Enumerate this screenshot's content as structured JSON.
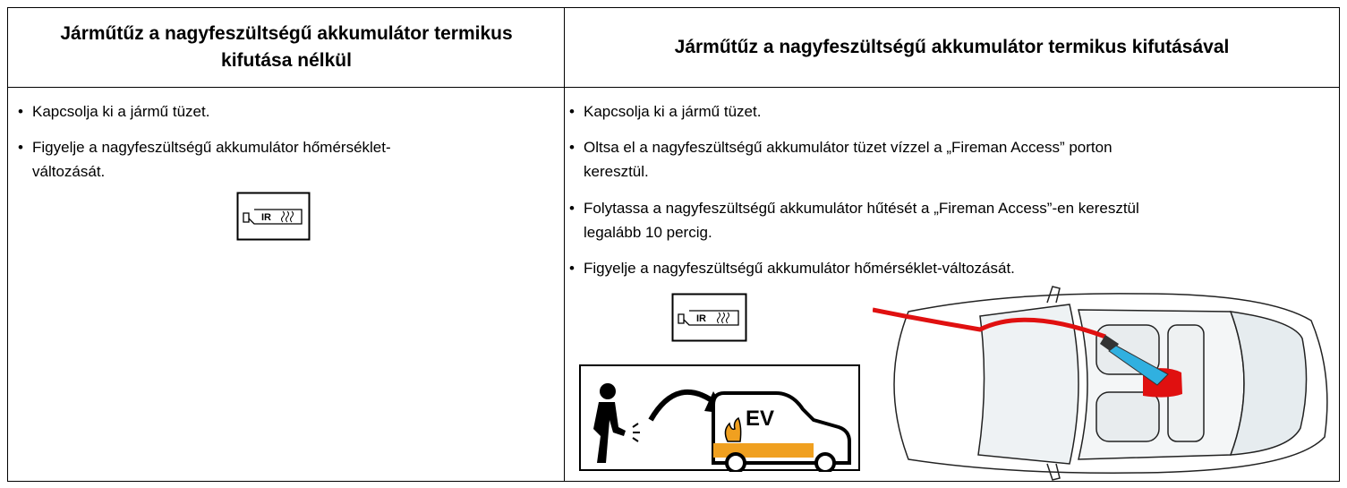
{
  "table": {
    "headers": [
      "Járműtűz a nagyfeszültségű akkumulátor termikus kifutása nélkül",
      "Járműtűz a nagyfeszültségű akkumulátor termikus kifutásával"
    ],
    "left_bullets": [
      "Kapcsolja ki a jármű tüzet.",
      "Figyelje a nagyfeszültségű akkumulátor hőmérséklet-változását."
    ],
    "right_bullets": [
      "Kapcsolja ki a jármű tüzet.",
      "Oltsa el a nagyfeszültségű akkumulátor tüzet vízzel a „Fireman Access” porton keresztül.",
      "Folytassa a nagyfeszültségű akkumulátor hűtését a „Fireman Access”-en keresztül legalább 10 percig.",
      "Figyelje a nagyfeszültségű akkumulátor hőmérséklet-változását."
    ]
  },
  "icons": {
    "ir": "IR",
    "ev": "EV"
  }
}
